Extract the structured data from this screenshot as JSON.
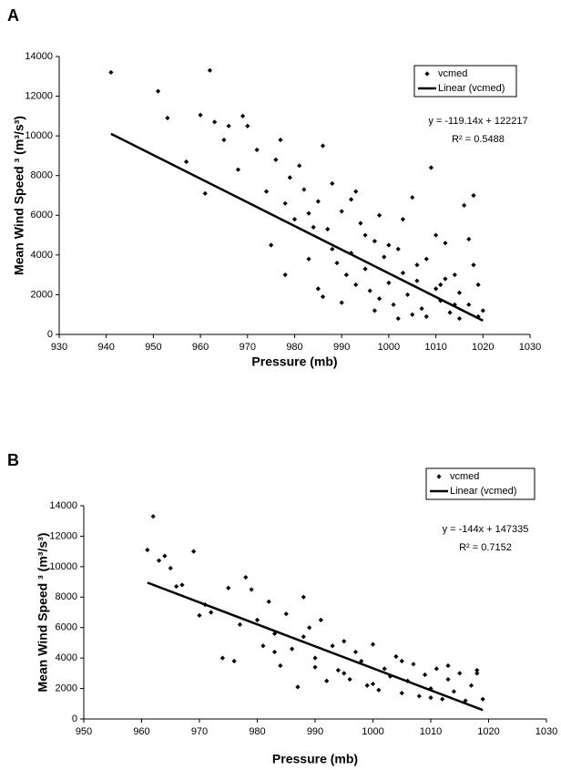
{
  "chart_data": [
    {
      "type": "scatter",
      "panel_label": "A",
      "xlabel": "Pressure (mb)",
      "ylabel": "Mean Wind Speed ³ (m³/s³)",
      "xlim": [
        930,
        1030
      ],
      "xticks": [
        930,
        940,
        950,
        960,
        970,
        980,
        990,
        1000,
        1010,
        1020,
        1030
      ],
      "ylim": [
        0,
        14000
      ],
      "yticks": [
        0,
        2000,
        4000,
        6000,
        8000,
        10000,
        12000,
        14000
      ],
      "legend": "upper right",
      "annotations": [
        "y = -119.14x + 122217",
        "R² = 0.5488"
      ],
      "series": [
        {
          "name": "vcmed",
          "color": "#000000",
          "x": [
            941,
            951,
            953,
            957,
            960,
            961,
            962,
            963,
            965,
            966,
            968,
            969,
            970,
            972,
            974,
            976,
            977,
            978,
            979,
            980,
            981,
            982,
            983,
            984,
            985,
            986,
            987,
            988,
            989,
            990,
            991,
            992,
            993,
            994,
            995,
            996,
            997,
            998,
            999,
            1000,
            1001,
            1002,
            1003,
            1004,
            1005,
            1006,
            1007,
            1008,
            1009,
            1010,
            1011,
            1012,
            1013,
            1014,
            1015,
            1016,
            1017,
            1018,
            1019,
            1020,
            985,
            988,
            990,
            992,
            995,
            997,
            1000,
            1003,
            1005,
            1008,
            1010,
            1012,
            1015,
            1017,
            1018,
            975,
            978,
            983,
            986,
            993,
            998,
            1002,
            1006,
            1011,
            1014,
            1019
          ],
          "y": [
            13200,
            12250,
            10900,
            8700,
            11050,
            7100,
            13300,
            10700,
            9800,
            10500,
            8300,
            11000,
            10500,
            9300,
            7200,
            8800,
            9800,
            6600,
            7900,
            5800,
            8500,
            7300,
            6100,
            5400,
            6700,
            9500,
            5300,
            4300,
            3600,
            6200,
            3000,
            4100,
            2500,
            5600,
            3300,
            2200,
            4700,
            1800,
            3900,
            2600,
            1500,
            4300,
            3100,
            2000,
            6900,
            2700,
            1300,
            3800,
            8400,
            2300,
            1700,
            4600,
            1100,
            3000,
            2100,
            6500,
            1500,
            3500,
            900,
            1200,
            2300,
            7600,
            1600,
            6800,
            5000,
            1200,
            4500,
            5800,
            1000,
            900,
            5000,
            2800,
            800,
            4800,
            7000,
            4500,
            3000,
            3800,
            1900,
            7200,
            6000,
            800,
            3500,
            2500,
            1500,
            2500
          ]
        },
        {
          "name": "Linear (vcmed)",
          "type": "line",
          "color": "#000000",
          "x": [
            941,
            1020
          ],
          "y": [
            10106,
            695
          ]
        }
      ]
    },
    {
      "type": "scatter",
      "panel_label": "B",
      "xlabel": "Pressure (mb)",
      "ylabel": "Mean Wind Speed ³ (m³/s³)",
      "xlim": [
        950,
        1030
      ],
      "xticks": [
        950,
        960,
        970,
        980,
        990,
        1000,
        1010,
        1020,
        1030
      ],
      "ylim": [
        0,
        14000
      ],
      "yticks": [
        0,
        2000,
        4000,
        6000,
        8000,
        10000,
        12000,
        14000
      ],
      "legend": "upper right",
      "annotations": [
        "y = -144x + 147335",
        "R² = 0.7152"
      ],
      "series": [
        {
          "name": "vcmed",
          "color": "#000000",
          "x": [
            961,
            962,
            963,
            964,
            965,
            966,
            967,
            969,
            970,
            971,
            972,
            974,
            975,
            976,
            977,
            978,
            979,
            980,
            981,
            982,
            983,
            984,
            985,
            986,
            987,
            988,
            989,
            990,
            991,
            992,
            993,
            994,
            995,
            996,
            997,
            998,
            999,
            1000,
            1001,
            1002,
            1003,
            1004,
            1005,
            1006,
            1007,
            1008,
            1009,
            1010,
            1011,
            1012,
            1013,
            1014,
            1015,
            1016,
            1017,
            1018,
            1019,
            1018,
            988,
            995,
            1000,
            1005,
            1010,
            1013,
            990,
            983
          ],
          "y": [
            11100,
            13300,
            10400,
            10700,
            9900,
            8700,
            8800,
            11000,
            6800,
            7500,
            7000,
            4000,
            8600,
            3800,
            6200,
            9300,
            8500,
            6500,
            4800,
            7700,
            5600,
            3500,
            6900,
            4600,
            2100,
            5400,
            6000,
            3400,
            6500,
            2500,
            4800,
            3200,
            5100,
            2600,
            4400,
            3800,
            2200,
            4900,
            1900,
            3300,
            2800,
            4100,
            1700,
            2500,
            3600,
            1500,
            2900,
            2000,
            3300,
            1300,
            2600,
            1800,
            3000,
            1200,
            2200,
            3200,
            1300,
            3000,
            8000,
            3000,
            2300,
            3800,
            1400,
            3500,
            4000,
            4400
          ]
        },
        {
          "name": "Linear (vcmed)",
          "type": "line",
          "color": "#000000",
          "x": [
            961,
            1019
          ],
          "y": [
            8951,
            586
          ]
        }
      ]
    }
  ]
}
